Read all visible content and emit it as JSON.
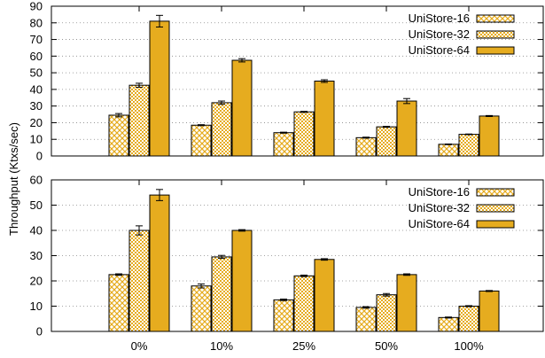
{
  "colors": {
    "series_fill": "#e6ac1f",
    "series_stroke": "#000000",
    "grid": "#888888",
    "background": "#ffffff"
  },
  "chart_data": [
    {
      "type": "bar",
      "categories": [
        "0%",
        "10%",
        "25%",
        "50%",
        "100%"
      ],
      "ylabel": "Throughput (Ktxs/sec)",
      "ylim": [
        0,
        90
      ],
      "yticks": [
        0,
        10,
        20,
        30,
        40,
        50,
        60,
        70,
        80,
        90
      ],
      "show_xtick_labels": false,
      "grid": "horizontal dotted",
      "legend_position": "top-right",
      "series": [
        {
          "name": "UniStore-16",
          "pattern": "diamond-mesh",
          "values": [
            24.5,
            18.5,
            14,
            11,
            7
          ],
          "errors": [
            1,
            0.3,
            0.3,
            0.3,
            0.2
          ]
        },
        {
          "name": "UniStore-32",
          "pattern": "checker",
          "values": [
            42.5,
            32,
            26.5,
            17.5,
            13
          ],
          "errors": [
            1.2,
            1,
            0.3,
            0.3,
            0.2
          ]
        },
        {
          "name": "UniStore-64",
          "pattern": "solid",
          "values": [
            81,
            57.5,
            45,
            33,
            24
          ],
          "errors": [
            3.5,
            1,
            0.8,
            1.5,
            0.3
          ]
        }
      ]
    },
    {
      "type": "bar",
      "categories": [
        "0%",
        "10%",
        "25%",
        "50%",
        "100%"
      ],
      "ylabel": "Throughput (Ktxs/sec)",
      "ylim": [
        0,
        60
      ],
      "yticks": [
        0,
        10,
        20,
        30,
        40,
        50,
        60
      ],
      "show_xtick_labels": true,
      "grid": "horizontal dotted",
      "legend_position": "top-right",
      "series": [
        {
          "name": "UniStore-16",
          "pattern": "diamond-mesh",
          "values": [
            22.5,
            18,
            12.5,
            9.5,
            5.5
          ],
          "errors": [
            0.3,
            0.8,
            0.3,
            0.3,
            0.2
          ]
        },
        {
          "name": "UniStore-32",
          "pattern": "checker",
          "values": [
            40,
            29.5,
            22,
            14.5,
            10
          ],
          "errors": [
            1.8,
            0.6,
            0.3,
            0.5,
            0.2
          ]
        },
        {
          "name": "UniStore-64",
          "pattern": "solid",
          "values": [
            54,
            40,
            28.5,
            22.5,
            16
          ],
          "errors": [
            2.2,
            0.3,
            0.3,
            0.3,
            0.2
          ]
        }
      ]
    }
  ]
}
